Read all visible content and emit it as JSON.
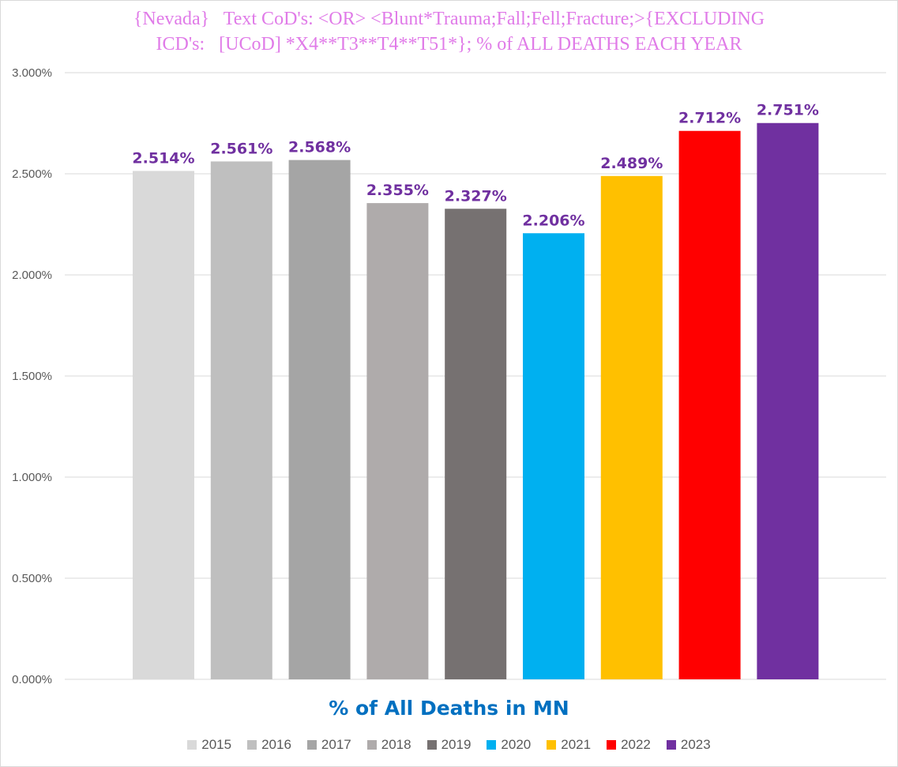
{
  "chart_data": {
    "type": "bar",
    "title": "{Nevada}   Text CoD's: <OR> <Blunt*Trauma;Fall;Fell;Fracture;>{EXCLUDING\nICD's:   [UCoD] *X4**T3**T4**T51*}; % of ALL DEATHS EACH YEAR",
    "xlabel": "% of All Deaths in MN",
    "ylabel": "",
    "ylim": [
      0,
      3.0
    ],
    "yticks": [
      "0.000%",
      "0.500%",
      "1.000%",
      "1.500%",
      "2.000%",
      "2.500%",
      "3.000%"
    ],
    "ytick_values": [
      0,
      0.5,
      1.0,
      1.5,
      2.0,
      2.5,
      3.0
    ],
    "grid": true,
    "legend_position": "bottom",
    "categories": [
      "2015",
      "2016",
      "2017",
      "2018",
      "2019",
      "2020",
      "2021",
      "2022",
      "2023"
    ],
    "values": [
      2.514,
      2.561,
      2.568,
      2.355,
      2.327,
      2.206,
      2.489,
      2.712,
      2.751
    ],
    "data_labels": [
      "2.514%",
      "2.561%",
      "2.568%",
      "2.355%",
      "2.327%",
      "2.206%",
      "2.489%",
      "2.712%",
      "2.751%"
    ],
    "colors": [
      "#d9d9d9",
      "#bfbfbf",
      "#a5a5a5",
      "#afabab",
      "#767171",
      "#00b0f0",
      "#ffc000",
      "#ff0000",
      "#7030a0"
    ]
  }
}
